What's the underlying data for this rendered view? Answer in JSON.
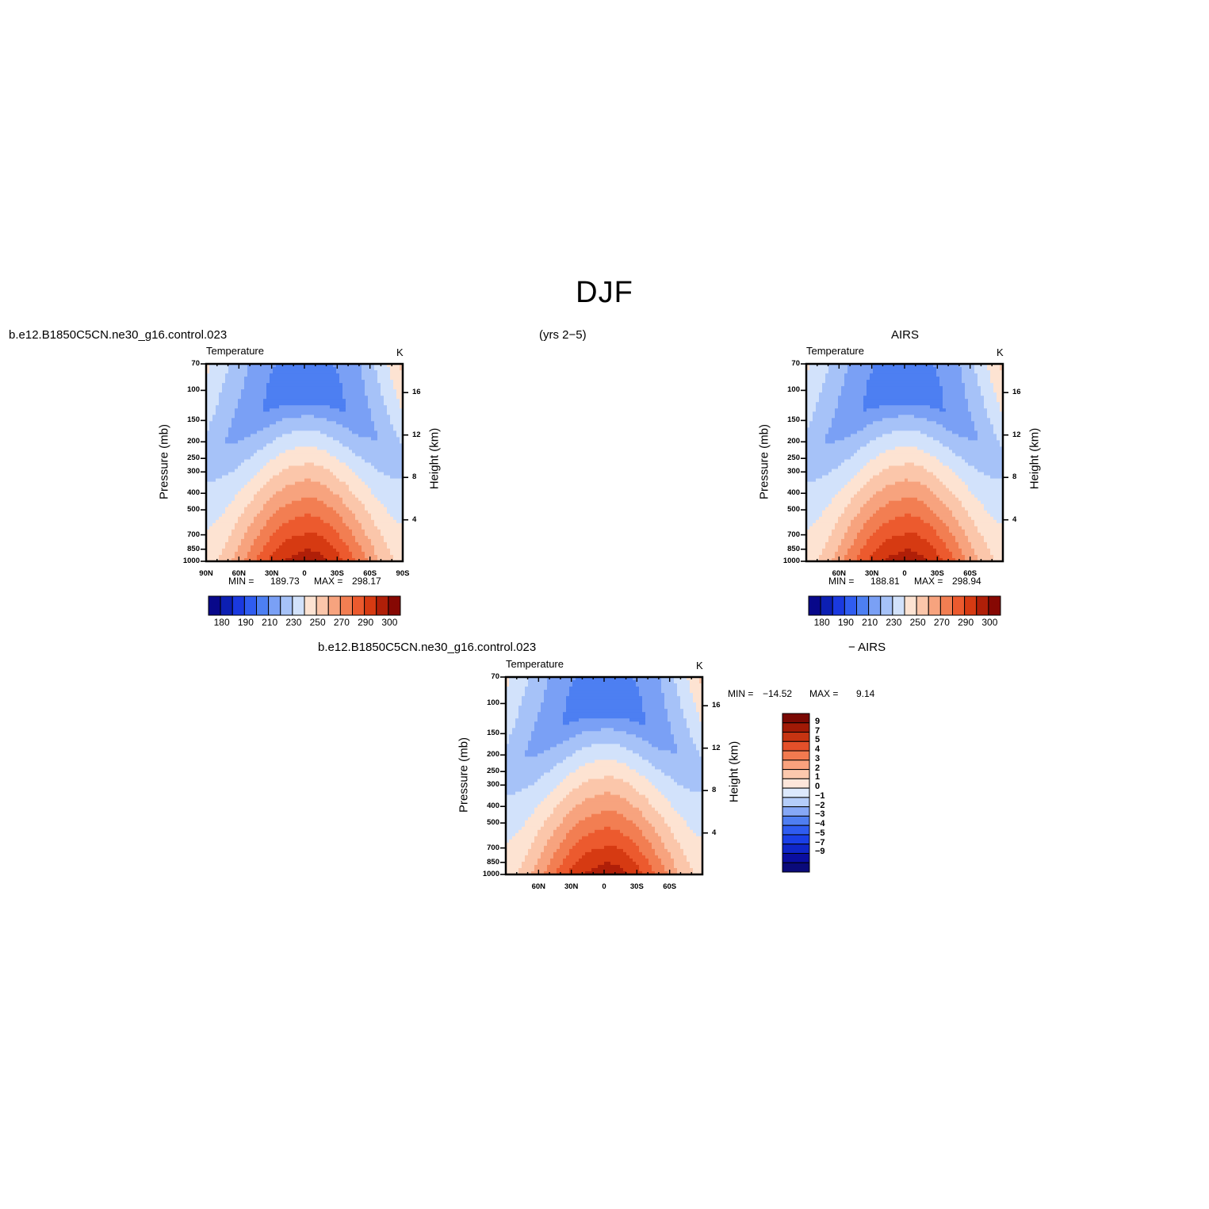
{
  "figure": {
    "title": "DJF",
    "period": "(yrs 2−5)",
    "left_case": "b.e12.B1850C5CN.ne30_g16.control.023",
    "right_case": "AIRS",
    "diff_case_a": "b.e12.B1850C5CN.ne30_g16.control.023",
    "diff_case_b": "− AIRS"
  },
  "colors": {
    "temperature_levels": [
      "#08088a",
      "#0c1fb3",
      "#1a39e0",
      "#2f5cf0",
      "#4d7ff2",
      "#7aa0f5",
      "#a6c2f8",
      "#d2e2fb",
      "#fde3d2",
      "#fbc6aa",
      "#f7a37e",
      "#f27e52",
      "#ec5a2e",
      "#d63a12",
      "#b01f08",
      "#860803"
    ],
    "diff_levels": [
      "#0a0a7a",
      "#0a0ea0",
      "#0f26c8",
      "#1a3fe6",
      "#2f5cf0",
      "#4f7ef1",
      "#86a8f6",
      "#b4cdf9",
      "#dce9fd",
      "#fde6da",
      "#fcc8ad",
      "#f9a27e",
      "#f27a4f",
      "#e4502a",
      "#c63412",
      "#a11a06",
      "#7a0903"
    ]
  },
  "chart_data": [
    {
      "type": "heatmap",
      "panel": "model",
      "title": "Temperature",
      "units": "K",
      "ylabel": "Pressure (mb)",
      "ylabel_right": "Height (km)",
      "x_tick_labels": [
        "90N",
        "60N",
        "30N",
        "0",
        "30S",
        "60S",
        "90S"
      ],
      "y_tick_labels": [
        "70",
        "100",
        "150",
        "200",
        "250",
        "300",
        "400",
        "500",
        "700",
        "850",
        "1000"
      ],
      "right_tick_labels": [
        "16",
        "12",
        "8",
        "4"
      ],
      "min_label": "MIN =",
      "min": "189.73",
      "max_label": "MAX =",
      "max": "298.17",
      "colorbar_labels": [
        "180",
        "190",
        "210",
        "230",
        "250",
        "270",
        "290",
        "300"
      ]
    },
    {
      "type": "heatmap",
      "panel": "obs",
      "title": "Temperature",
      "units": "K",
      "ylabel": "Pressure (mb)",
      "ylabel_right": "Height (km)",
      "x_tick_labels": [
        "60N",
        "30N",
        "0",
        "30S",
        "60S"
      ],
      "y_tick_labels": [
        "70",
        "100",
        "150",
        "200",
        "250",
        "300",
        "400",
        "500",
        "700",
        "850",
        "1000"
      ],
      "right_tick_labels": [
        "16",
        "12",
        "8",
        "4"
      ],
      "min_label": "MIN =",
      "min": "188.81",
      "max_label": "MAX =",
      "max": "298.94",
      "colorbar_labels": [
        "180",
        "190",
        "210",
        "230",
        "250",
        "270",
        "290",
        "300"
      ]
    },
    {
      "type": "heatmap",
      "panel": "difference",
      "title": "Temperature",
      "units": "K",
      "ylabel": "Pressure (mb)",
      "ylabel_right": "Height (km)",
      "x_tick_labels": [
        "60N",
        "30N",
        "0",
        "30S",
        "60S"
      ],
      "y_tick_labels": [
        "70",
        "100",
        "150",
        "200",
        "250",
        "300",
        "400",
        "500",
        "700",
        "850",
        "1000"
      ],
      "right_tick_labels": [
        "16",
        "12",
        "8",
        "4"
      ],
      "min_label": "MIN =",
      "min": "−14.52",
      "max_label": "MAX =",
      "max": "9.14",
      "colorbar_labels": [
        "9",
        "7",
        "5",
        "4",
        "3",
        "2",
        "1",
        "0",
        "−1",
        "−2",
        "−3",
        "−4",
        "−5",
        "−7",
        "−9"
      ]
    }
  ]
}
